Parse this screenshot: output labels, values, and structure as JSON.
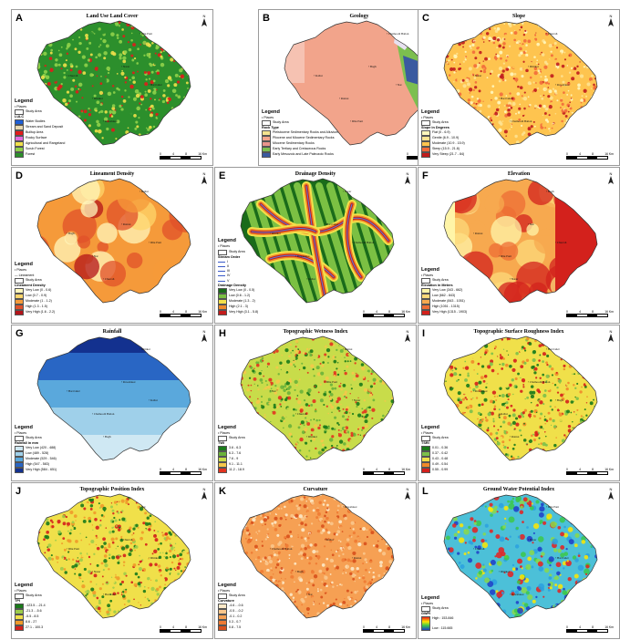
{
  "panels": [
    {
      "id": "A",
      "title": "Land Use Land Cover",
      "theme": "lulc",
      "legend": {
        "title": "Legend",
        "places": "Places",
        "study_area": "Study Area",
        "subtitle": "LULC",
        "items": [
          {
            "label": "Water Bodies",
            "color": "#1f5fd6"
          },
          {
            "label": "Stream and Sand Deposit",
            "color": "#e8d9b0"
          },
          {
            "label": "Builtup Area",
            "color": "#e21b1b"
          },
          {
            "label": "Rocky Surface",
            "color": "#e36de0"
          },
          {
            "label": "Agricultural and Rangeland",
            "color": "#f0e04a"
          },
          {
            "label": "Scrub Forest",
            "color": "#8fd24a"
          },
          {
            "label": "Forest",
            "color": "#2c8f2c"
          }
        ]
      }
    },
    {
      "id": "B",
      "title": "Geology",
      "theme": "geology",
      "legend": {
        "title": "Legend",
        "places": "Places",
        "study_area": "Study Area",
        "subtitle": "Rock Type",
        "items": [
          {
            "label": "Pleistocene Sedimentary Rocks and Alluvium",
            "color": "#f4e38f"
          },
          {
            "label": "Pliocene and Miocene Sedimentary Rocks",
            "color": "#f2a48b"
          },
          {
            "label": "Miocene Sedimentary Rocks",
            "color": "#e8948c"
          },
          {
            "label": "Early Tertiary and Cretaceous Rocks",
            "color": "#7cbf4f"
          },
          {
            "label": "Early Mesozoic and Late Paleozoic Rocks",
            "color": "#3a5aa0"
          }
        ]
      }
    },
    {
      "id": "C",
      "title": "Slope",
      "theme": "slope",
      "legend": {
        "title": "Legend",
        "places": "Places",
        "study_area": "Study Area",
        "subtitle": "Slope in Degrees",
        "items": [
          {
            "label": "Flat (0 - 6.9)",
            "color": "#fff7bc"
          },
          {
            "label": "Gentle (6.9 - 10.9)",
            "color": "#fee391"
          },
          {
            "label": "Moderate (10.9 - 15.9)",
            "color": "#fec44f"
          },
          {
            "label": "Steep (15.9 - 21.8)",
            "color": "#f26b3a"
          },
          {
            "label": "Very Steep (21.7 - 84)",
            "color": "#c01d1d"
          }
        ]
      }
    },
    {
      "id": "D",
      "title": "Lineament Density",
      "theme": "lineament",
      "legend": {
        "title": "Legend",
        "places": "Places",
        "lineament": "Lineament",
        "study_area": "Study Area",
        "subtitle": "Lineament Density",
        "items": [
          {
            "label": "Very Low (0 - 0.6)",
            "color": "#fff7bc"
          },
          {
            "label": "Low (0.7 - 0.9)",
            "color": "#fdd56b"
          },
          {
            "label": "Moderate (1 - 1.2)",
            "color": "#f59a3a"
          },
          {
            "label": "High (1.3 - 1.5)",
            "color": "#e0502a"
          },
          {
            "label": "Very High (1.6 - 2.2)",
            "color": "#b3141a"
          }
        ]
      }
    },
    {
      "id": "E",
      "title": "Drainage Density",
      "theme": "drainage",
      "legend": {
        "title": "Legend",
        "places": "Places",
        "study_area": "Study Area",
        "subtitle": "Stream Order",
        "orders": [
          "I",
          "II",
          "III",
          "IV",
          "V"
        ],
        "subtitle2": "Drainage Density",
        "items": [
          {
            "label": "Very Low (0 - 0.5)",
            "color": "#1a6b1a"
          },
          {
            "label": "Low (0.6 - 1.2)",
            "color": "#7bc043"
          },
          {
            "label": "Moderate (1.3 - 2)",
            "color": "#f3e04a"
          },
          {
            "label": "High (2.1 - 3)",
            "color": "#f08a2a"
          },
          {
            "label": "Very High (3.1 - 5.8)",
            "color": "#c41c1c"
          }
        ]
      }
    },
    {
      "id": "F",
      "title": "Elevation",
      "theme": "elevation",
      "legend": {
        "title": "Legend",
        "places": "Places",
        "study_area": "Study Area",
        "subtitle": "Elevation in Meters",
        "items": [
          {
            "label": "Very Low (343 - 662)",
            "color": "#fff5a8"
          },
          {
            "label": "Low (662 - 843)",
            "color": "#fcd97a"
          },
          {
            "label": "Moderate (843 - 1051)",
            "color": "#f7a94f"
          },
          {
            "label": "High (1051 - 1315)",
            "color": "#ee6d34"
          },
          {
            "label": "Very High (1315 - 1903)",
            "color": "#d3211c"
          }
        ]
      }
    },
    {
      "id": "G",
      "title": "Rainfall",
      "theme": "rainfall",
      "legend": {
        "title": "Legend",
        "places": "Places",
        "study_area": "Study Area",
        "subtitle": "Rainfall in mm",
        "items": [
          {
            "label": "Very Low (420 - 488)",
            "color": "#cfe8f3"
          },
          {
            "label": "Low (489 - 528)",
            "color": "#9fd0ea"
          },
          {
            "label": "Moderate (529 - 546)",
            "color": "#5aa8dc"
          },
          {
            "label": "High (547 - 583)",
            "color": "#2966c4"
          },
          {
            "label": "Very High (584 - 651)",
            "color": "#13318f"
          }
        ]
      }
    },
    {
      "id": "H",
      "title": "Topographic Wetness Index",
      "theme": "twi",
      "legend": {
        "title": "Legend",
        "places": "Places",
        "study_area": "Study Area",
        "subtitle": "TWI",
        "items": [
          {
            "label": "3.6 - 6.3",
            "color": "#1a7a1a"
          },
          {
            "label": "6.3 - 7.6",
            "color": "#6ab23a"
          },
          {
            "label": "7.6 - 9",
            "color": "#c8dc4a"
          },
          {
            "label": "9.1 - 11.1",
            "color": "#f5c84a"
          },
          {
            "label": "11.2 - 18.9",
            "color": "#e3331f"
          }
        ]
      }
    },
    {
      "id": "I",
      "title": "Topographic Surface Roughness Index",
      "theme": "tsri",
      "legend": {
        "title": "Legend",
        "places": "Places",
        "study_area": "Study Area",
        "subtitle": "TSRI",
        "items": [
          {
            "label": "0.01 - 0.36",
            "color": "#1a7a1a"
          },
          {
            "label": "0.37 - 0.42",
            "color": "#7cc04a"
          },
          {
            "label": "0.43 - 0.48",
            "color": "#f0e04a"
          },
          {
            "label": "0.49 - 0.54",
            "color": "#f08a2a"
          },
          {
            "label": "0.55 - 0.99",
            "color": "#d4201c"
          }
        ]
      }
    },
    {
      "id": "J",
      "title": "Topographic Position Index",
      "theme": "tpi",
      "legend": {
        "title": "Legend",
        "places": "Places",
        "study_area": "Study Area",
        "subtitle": "TPI",
        "items": [
          {
            "label": "-123.5 - -21.4",
            "color": "#1a7a1a"
          },
          {
            "label": "-21.3 - -5.6",
            "color": "#9ccc4a"
          },
          {
            "label": "-5.5 - 8.5",
            "color": "#f0e04a"
          },
          {
            "label": "8.6 - 27",
            "color": "#f09a2a"
          },
          {
            "label": "27.1 - 100.3",
            "color": "#d4201c"
          }
        ]
      }
    },
    {
      "id": "K",
      "title": "Curvature",
      "theme": "curvature",
      "legend": {
        "title": "Legend",
        "places": "Places",
        "study_area": "Study Area",
        "subtitle": "Curvature",
        "items": [
          {
            "label": "-4.6 - -0.6",
            "color": "#fde9c8"
          },
          {
            "label": "-0.5 - -0.2",
            "color": "#fbc78c"
          },
          {
            "label": "-0.1 - 0.2",
            "color": "#f6a053"
          },
          {
            "label": "0.3 - 0.7",
            "color": "#ee7a33"
          },
          {
            "label": "0.8 - 7.5",
            "color": "#d8501c"
          }
        ]
      }
    },
    {
      "id": "L",
      "title": "Ground Water Potential Index",
      "theme": "gwpi",
      "legend": {
        "title": "Legend",
        "places": "Places",
        "study_area": "Study Area",
        "subtitle": "GWPI",
        "high": "High : 153.846",
        "low": "Low : 115.665"
      }
    }
  ],
  "scale": {
    "ticks": [
      "0",
      "4",
      "8",
      "16 Km"
    ]
  },
  "places": [
    "Dhu Pani",
    "Chamoodi Batian",
    "Churrah",
    "Kallar",
    "Narar",
    "Bagh",
    "Dhirkot",
    "Ratnoi",
    "Hari Ghel",
    "Nar",
    "Rawalakot"
  ],
  "colors": {
    "outline": "#333333",
    "panel_border": "#9a9a9a"
  }
}
